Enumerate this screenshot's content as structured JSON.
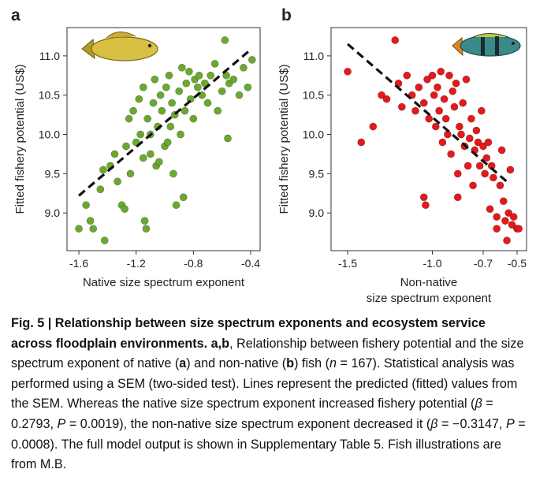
{
  "chart_data": [
    {
      "type": "scatter",
      "label": "a",
      "xlabel": [
        "Native size spectrum exponent"
      ],
      "ylabel": "Fitted fishery potential (US$)",
      "color": "#6aa92e",
      "x": [
        -1.6,
        -1.55,
        -1.52,
        -1.5,
        -1.45,
        -1.43,
        -1.42,
        -1.38,
        -1.35,
        -1.33,
        -1.3,
        -1.28,
        -1.27,
        -1.25,
        -1.24,
        -1.22,
        -1.2,
        -1.18,
        -1.17,
        -1.15,
        -1.15,
        -1.14,
        -1.13,
        -1.12,
        -1.1,
        -1.1,
        -1.08,
        -1.07,
        -1.06,
        -1.05,
        -1.04,
        -1.03,
        -1.02,
        -1.0,
        -0.99,
        -0.98,
        -0.97,
        -0.96,
        -0.95,
        -0.94,
        -0.93,
        -0.92,
        -0.9,
        -0.89,
        -0.88,
        -0.87,
        -0.86,
        -0.85,
        -0.83,
        -0.82,
        -0.8,
        -0.79,
        -0.77,
        -0.76,
        -0.74,
        -0.72,
        -0.7,
        -0.68,
        -0.65,
        -0.63,
        -0.6,
        -0.58,
        -0.57,
        -0.56,
        -0.55,
        -0.52,
        -0.48,
        -0.45,
        -0.42,
        -0.39
      ],
      "y": [
        8.8,
        9.1,
        8.9,
        8.8,
        9.3,
        9.55,
        8.65,
        9.6,
        9.75,
        9.4,
        9.1,
        9.05,
        9.85,
        10.2,
        9.5,
        10.3,
        9.9,
        10.45,
        10.0,
        10.6,
        9.7,
        8.9,
        8.8,
        10.2,
        10.0,
        9.75,
        10.4,
        10.7,
        9.6,
        10.1,
        9.65,
        10.5,
        10.3,
        9.85,
        10.6,
        9.9,
        10.75,
        10.1,
        10.4,
        9.5,
        10.25,
        9.1,
        10.55,
        10.0,
        10.85,
        9.2,
        10.3,
        10.65,
        10.8,
        10.45,
        10.2,
        10.7,
        10.6,
        10.75,
        10.5,
        10.65,
        10.4,
        10.75,
        10.9,
        10.3,
        10.55,
        11.2,
        10.75,
        9.95,
        10.65,
        10.7,
        10.5,
        10.85,
        10.6,
        10.95
      ],
      "fit": {
        "x": [
          -1.6,
          -0.4
        ],
        "y": [
          9.22,
          11.08
        ],
        "color": "#111111"
      },
      "xlim": [
        -1.683,
        -0.334
      ],
      "ylim": [
        8.52,
        11.36
      ],
      "xticks": [
        -1.6,
        -1.2,
        -0.8,
        -0.4
      ],
      "yticks": [
        {
          "value": 9,
          "label": "9.0"
        },
        9.5,
        {
          "value": 10,
          "label": "10.0"
        },
        10.5,
        {
          "value": 11,
          "label": "11.0"
        }
      ]
    },
    {
      "type": "scatter",
      "label": "b",
      "xlabel": [
        "Non-native",
        "size spectrum exponent"
      ],
      "ylabel": "Fitted fishery potential (US$)",
      "color": "#e3191c",
      "x": [
        -1.5,
        -1.42,
        -1.35,
        -1.3,
        -1.27,
        -1.22,
        -1.2,
        -1.18,
        -1.15,
        -1.12,
        -1.1,
        -1.08,
        -1.05,
        -1.05,
        -1.04,
        -1.03,
        -1.02,
        -1.0,
        -0.99,
        -0.98,
        -0.97,
        -0.96,
        -0.95,
        -0.94,
        -0.93,
        -0.92,
        -0.91,
        -0.9,
        -0.89,
        -0.88,
        -0.87,
        -0.86,
        -0.85,
        -0.85,
        -0.84,
        -0.83,
        -0.82,
        -0.81,
        -0.8,
        -0.79,
        -0.78,
        -0.77,
        -0.76,
        -0.75,
        -0.74,
        -0.73,
        -0.72,
        -0.71,
        -0.7,
        -0.69,
        -0.68,
        -0.67,
        -0.66,
        -0.65,
        -0.64,
        -0.62,
        -0.62,
        -0.6,
        -0.59,
        -0.58,
        -0.57,
        -0.56,
        -0.55,
        -0.54,
        -0.53,
        -0.52,
        -0.5,
        -0.49
      ],
      "y": [
        10.8,
        9.9,
        10.1,
        10.5,
        10.45,
        11.2,
        10.65,
        10.35,
        10.75,
        10.5,
        10.3,
        10.6,
        10.4,
        9.2,
        9.1,
        10.7,
        10.2,
        10.75,
        10.5,
        10.1,
        10.6,
        10.3,
        10.8,
        9.9,
        10.45,
        10.2,
        10.0,
        10.75,
        9.75,
        10.55,
        10.35,
        10.65,
        9.5,
        9.2,
        10.1,
        10.0,
        10.4,
        9.85,
        10.7,
        9.6,
        9.95,
        10.2,
        9.35,
        9.8,
        10.05,
        9.9,
        9.6,
        10.3,
        9.85,
        9.5,
        9.7,
        9.9,
        9.05,
        9.6,
        9.45,
        8.95,
        8.8,
        9.35,
        9.8,
        9.15,
        8.9,
        8.65,
        9.0,
        9.55,
        8.85,
        8.95,
        8.8,
        8.8
      ],
      "fit": {
        "x": [
          -1.5,
          -0.55
        ],
        "y": [
          11.15,
          9.38
        ],
        "color": "#111111"
      },
      "xlim": [
        -1.598,
        -0.444
      ],
      "ylim": [
        8.52,
        11.36
      ],
      "xticks": [
        -1.5,
        {
          "value": -1,
          "label": "-1.0"
        },
        -0.7,
        -0.5
      ],
      "yticks": [
        {
          "value": 9,
          "label": "9.0"
        },
        9.5,
        {
          "value": 10,
          "label": "10.0"
        },
        10.5,
        {
          "value": 11,
          "label": "11.0"
        }
      ]
    }
  ],
  "caption": {
    "segments": [
      {
        "text": "Fig. 5 | Relationship between size spectrum exponents and ecosystem service across floodplain environments. a",
        "style": "b"
      },
      {
        "text": ",",
        "style": "b"
      },
      {
        "text": "b",
        "style": "b"
      },
      {
        "text": ", Relationship between fishery potential and the size spectrum exponent of native ("
      },
      {
        "text": "a",
        "style": "b"
      },
      {
        "text": ") and non-native ("
      },
      {
        "text": "b",
        "style": "b"
      },
      {
        "text": ") fish ("
      },
      {
        "text": "n",
        "style": "i"
      },
      {
        "text": " = 167). Statistical analysis was performed using a SEM (two-sided test). Lines represent the predicted (fitted) values from the SEM. Whereas the native size spectrum exponent increased fishery potential ("
      },
      {
        "text": "β",
        "style": "i"
      },
      {
        "text": " = 0.2793, "
      },
      {
        "text": "P",
        "style": "i"
      },
      {
        "text": " = 0.0019), the non-native size spectrum exponent decreased it ("
      },
      {
        "text": "β",
        "style": "i"
      },
      {
        "text": " = −0.3147, "
      },
      {
        "text": "P",
        "style": "i"
      },
      {
        "text": " = 0.0008). The full model output is shown in Supplementary Table 5. Fish illustrations are from M.B."
      }
    ]
  }
}
